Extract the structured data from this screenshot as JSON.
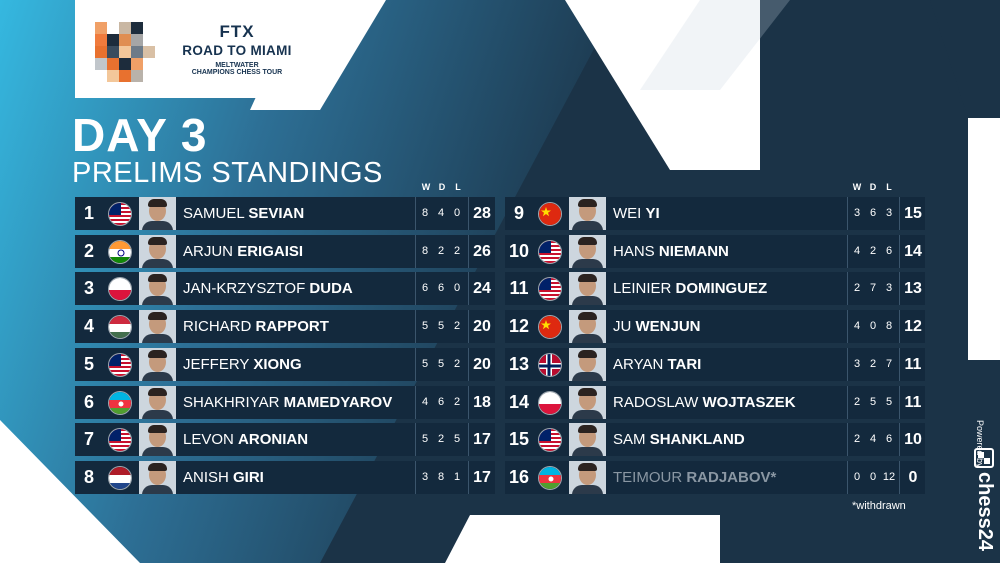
{
  "event": {
    "brand": "FTX",
    "title": "ROAD TO MIAMI",
    "sub1": "MELTWATER",
    "sub2": "CHAMPIONS CHESS TOUR"
  },
  "heading": {
    "day": "DAY 3",
    "subtitle": "PRELIMS STANDINGS"
  },
  "columns": {
    "w": "W",
    "d": "D",
    "l": "L"
  },
  "colors": {
    "background": "#1b3347",
    "accent_cyan": "#35b8e0",
    "row_bg": "#13293d"
  },
  "standings": [
    {
      "rank": "1",
      "flag": "usa",
      "first": "SAMUEL",
      "last": "SEVIAN",
      "w": "8",
      "d": "4",
      "l": "0",
      "pts": "28"
    },
    {
      "rank": "2",
      "flag": "india",
      "first": "ARJUN",
      "last": "ERIGAISI",
      "w": "8",
      "d": "2",
      "l": "2",
      "pts": "26"
    },
    {
      "rank": "3",
      "flag": "poland",
      "first": "JAN-KRZYSZTOF",
      "last": "DUDA",
      "w": "6",
      "d": "6",
      "l": "0",
      "pts": "24"
    },
    {
      "rank": "4",
      "flag": "hungary",
      "first": "RICHARD",
      "last": "RAPPORT",
      "w": "5",
      "d": "5",
      "l": "2",
      "pts": "20"
    },
    {
      "rank": "5",
      "flag": "usa",
      "first": "JEFFERY",
      "last": "XIONG",
      "w": "5",
      "d": "5",
      "l": "2",
      "pts": "20"
    },
    {
      "rank": "6",
      "flag": "azerbaijan",
      "first": "SHAKHRIYAR",
      "last": "MAMEDYAROV",
      "w": "4",
      "d": "6",
      "l": "2",
      "pts": "18"
    },
    {
      "rank": "7",
      "flag": "usa",
      "first": "LEVON",
      "last": "ARONIAN",
      "w": "5",
      "d": "2",
      "l": "5",
      "pts": "17"
    },
    {
      "rank": "8",
      "flag": "netherlands",
      "first": "ANISH",
      "last": "GIRI",
      "w": "3",
      "d": "8",
      "l": "1",
      "pts": "17"
    },
    {
      "rank": "9",
      "flag": "china",
      "first": "WEI",
      "last": "YI",
      "w": "3",
      "d": "6",
      "l": "3",
      "pts": "15"
    },
    {
      "rank": "10",
      "flag": "usa",
      "first": "HANS",
      "last": "NIEMANN",
      "w": "4",
      "d": "2",
      "l": "6",
      "pts": "14"
    },
    {
      "rank": "11",
      "flag": "usa",
      "first": "LEINIER",
      "last": "DOMINGUEZ",
      "w": "2",
      "d": "7",
      "l": "3",
      "pts": "13"
    },
    {
      "rank": "12",
      "flag": "china",
      "first": "JU",
      "last": "WENJUN",
      "w": "4",
      "d": "0",
      "l": "8",
      "pts": "12"
    },
    {
      "rank": "13",
      "flag": "norway",
      "first": "ARYAN",
      "last": "TARI",
      "w": "3",
      "d": "2",
      "l": "7",
      "pts": "11"
    },
    {
      "rank": "14",
      "flag": "poland",
      "first": "RADOSLAW",
      "last": "WOJTASZEK",
      "w": "2",
      "d": "5",
      "l": "5",
      "pts": "11"
    },
    {
      "rank": "15",
      "flag": "usa",
      "first": "SAM",
      "last": "SHANKLAND",
      "w": "2",
      "d": "4",
      "l": "6",
      "pts": "10"
    },
    {
      "rank": "16",
      "flag": "azerbaijan",
      "first": "TEIMOUR",
      "last": "RADJABOV*",
      "w": "0",
      "d": "0",
      "l": "12",
      "pts": "0",
      "withdrawn": true
    }
  ],
  "footnote": "*withdrawn",
  "powered": {
    "label": "Powered by",
    "sponsor": "chess24"
  }
}
